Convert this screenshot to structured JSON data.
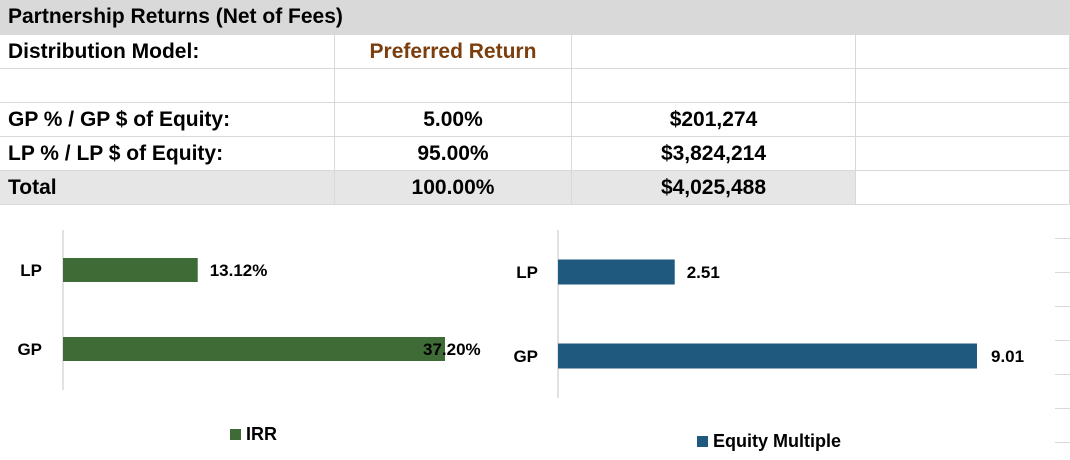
{
  "table": {
    "title": "Partnership Returns (Net of Fees)",
    "distribution_label": "Distribution Model:",
    "distribution_value": "Preferred Return",
    "rows": [
      {
        "label": "GP % / GP $ of Equity:",
        "pct": "5.00%",
        "amount": "$201,274"
      },
      {
        "label": "LP % / LP $ of Equity:",
        "pct": "95.00%",
        "amount": "$3,824,214"
      }
    ],
    "total": {
      "label": "Total",
      "pct": "100.00%",
      "amount": "$4,025,488"
    }
  },
  "colors": {
    "irr": "#3f6b37",
    "equity_multiple": "#1f5a7e",
    "header_fill": "#d9d9d9",
    "accent_text": "#7b3e0c"
  },
  "chart_data": [
    {
      "type": "bar",
      "orientation": "horizontal",
      "categories": [
        "LP",
        "GP"
      ],
      "series": [
        {
          "name": "IRR",
          "values": [
            13.12,
            37.2
          ]
        }
      ],
      "data_labels": [
        "13.12%",
        "37.20%"
      ],
      "xlim": [
        0,
        37.2
      ],
      "legend": "bottom",
      "grid": false
    },
    {
      "type": "bar",
      "orientation": "horizontal",
      "categories": [
        "LP",
        "GP"
      ],
      "series": [
        {
          "name": "Equity Multiple",
          "values": [
            2.51,
            9.01
          ]
        }
      ],
      "data_labels": [
        "2.51",
        "9.01"
      ],
      "xlim": [
        0,
        9.01
      ],
      "legend": "bottom",
      "grid": false
    }
  ]
}
